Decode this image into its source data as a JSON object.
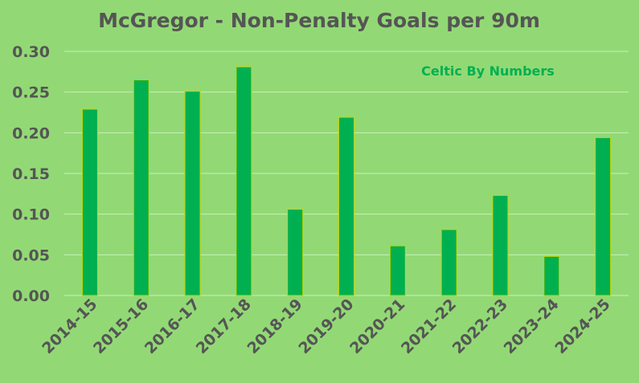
{
  "chart_data": {
    "type": "bar",
    "title": "McGregor - Non-Penalty Goals per 90m",
    "annotation": "Celtic By Numbers",
    "xlabel": "",
    "ylabel": "",
    "categories": [
      "2014-15",
      "2015-16",
      "2016-17",
      "2017-18",
      "2018-19",
      "2019-20",
      "2020-21",
      "2021-22",
      "2022-23",
      "2023-24",
      "2024-25"
    ],
    "values": [
      0.229,
      0.265,
      0.251,
      0.281,
      0.106,
      0.219,
      0.061,
      0.081,
      0.123,
      0.048,
      0.194
    ],
    "ylim": [
      0,
      0.3
    ],
    "yticks": [
      "0.00",
      "0.05",
      "0.10",
      "0.15",
      "0.20",
      "0.25",
      "0.30"
    ],
    "grid": true,
    "legend": "none",
    "colors": {
      "bar": "#00b050",
      "bar_outline": "#c8d400",
      "background": "#92d975",
      "text": "#555555",
      "annotation": "#00b050"
    }
  }
}
